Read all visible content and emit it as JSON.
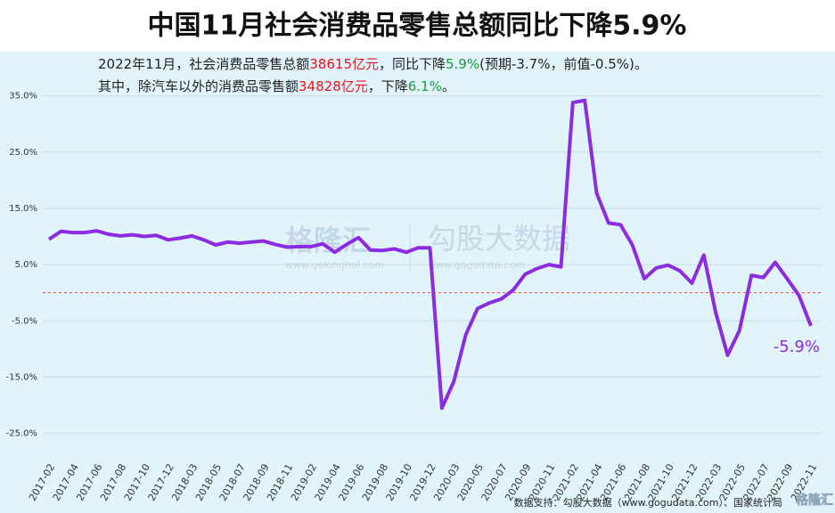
{
  "chart_data": {
    "type": "line",
    "title": "中国11月社会消费品零售总额同比下降5.9%",
    "subtitle_lines": [
      [
        {
          "text": "2022年11月，社会消费品零售总额"
        },
        {
          "text": "38615亿元",
          "color": "#e8141a"
        },
        {
          "text": "，同比下降"
        },
        {
          "text": "5.9%",
          "color": "#1a9a3a"
        },
        {
          "text": "(预期-3.7%，前值-0.5%)。"
        }
      ],
      [
        {
          "text": "其中，除汽车以外的消费品零售额"
        },
        {
          "text": "34828亿元",
          "color": "#e8141a"
        },
        {
          "text": "，下降"
        },
        {
          "text": "6.1%",
          "color": "#1a9a3a"
        },
        {
          "text": "。"
        }
      ]
    ],
    "categories": [
      "2017-02",
      null,
      "2017-04",
      null,
      "2017-06",
      null,
      "2017-08",
      null,
      "2017-10",
      null,
      "2017-12",
      null,
      "2018-03",
      null,
      "2018-05",
      null,
      "2018-07",
      null,
      "2018-09",
      null,
      "2018-11",
      null,
      "2019-02",
      null,
      "2019-04",
      null,
      "2019-06",
      null,
      "2019-08",
      null,
      "2019-10",
      null,
      "2019-12",
      null,
      "2020-03",
      null,
      "2020-05",
      null,
      "2020-07",
      null,
      "2020-09",
      null,
      "2020-11",
      null,
      "2021-02",
      null,
      "2021-04",
      null,
      "2021-06",
      null,
      "2021-08",
      null,
      "2021-10",
      null,
      "2021-12",
      null,
      "2022-03",
      null,
      "2022-05",
      null,
      "2022-07",
      null,
      "2022-09",
      null,
      "2022-11"
    ],
    "series": [
      {
        "color": "#8b2be2",
        "values": [
          9.5,
          10.9,
          10.7,
          10.7,
          11.0,
          10.4,
          10.1,
          10.3,
          10.0,
          10.2,
          9.4,
          9.7,
          10.1,
          9.4,
          8.5,
          9.0,
          8.8,
          9.0,
          9.2,
          8.6,
          8.1,
          8.2,
          8.2,
          8.7,
          7.2,
          8.6,
          9.8,
          7.6,
          7.5,
          7.8,
          7.2,
          8.0,
          8.0,
          -20.5,
          -15.8,
          -7.5,
          -2.8,
          -1.8,
          -1.1,
          0.5,
          3.3,
          4.3,
          5.0,
          4.6,
          33.8,
          34.2,
          17.7,
          12.4,
          12.1,
          8.5,
          2.5,
          4.4,
          4.9,
          3.9,
          1.7,
          6.7,
          -3.5,
          -11.1,
          -6.7,
          3.1,
          2.7,
          5.4,
          2.5,
          -0.5,
          -5.9
        ]
      }
    ],
    "end_label": "-5.9%",
    "ylim": [
      -29.5,
      37
    ],
    "yticks": [
      {
        "value": -25,
        "label": "-25.0%"
      },
      {
        "value": -15,
        "label": "-15.0%"
      },
      {
        "value": -5,
        "label": "-5.0%"
      },
      {
        "value": 5,
        "label": "5.0%"
      },
      {
        "value": 15,
        "label": "15.0%"
      },
      {
        "value": 25,
        "label": "25.0%"
      },
      {
        "value": 35,
        "label": "35.0%"
      }
    ],
    "grid": true,
    "reference_line": {
      "value": 0,
      "color": "#e05050"
    },
    "watermarks": [
      "格隆汇",
      "www.gelonghui.com",
      "勾股大数据",
      "www.gogudata.com"
    ],
    "source": "数据支持：勾股大数据（www.gogudata.com）、国家统计局",
    "logo": "格隆汇"
  }
}
